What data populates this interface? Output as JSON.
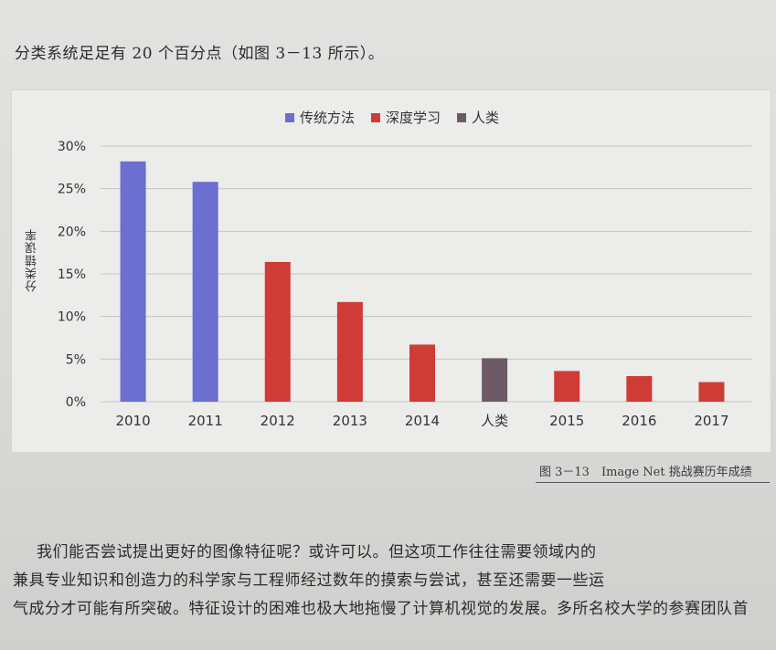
{
  "page": {
    "intro": "分类系统足足有 20 个百分点（如图 3－13 所示）。",
    "caption": "图 3－13　Image Net 挑战赛历年成绩",
    "body_lines": [
      "我们能否尝试提出更好的图像特征呢？或许可以。但这项工作往往需要领域内的",
      "兼具专业知识和创造力的科学家与工程师经过数年的摸索与尝试，甚至还需要一些运",
      "气成分才可能有所突破。特征设计的困难也极大地拖慢了计算机视觉的发展。多所名校大学的参赛团队首"
    ]
  },
  "colors": {
    "traditional": "#6b6fcf",
    "deep_learning": "#cf3b35",
    "human": "#6e5a66",
    "grid": "#c4c4c2"
  },
  "chart_data": {
    "type": "bar",
    "title": "",
    "xlabel": "",
    "ylabel": "分类错误率",
    "ylim": [
      0,
      30
    ],
    "yticks": [
      "0%",
      "5%",
      "10%",
      "15%",
      "20%",
      "25%",
      "30%"
    ],
    "grid": true,
    "legend_position": "top-center",
    "legend": [
      {
        "name": "传统方法",
        "color_key": "traditional"
      },
      {
        "name": "深度学习",
        "color_key": "deep_learning"
      },
      {
        "name": "人类",
        "color_key": "human"
      }
    ],
    "categories": [
      "2010",
      "2011",
      "2012",
      "2013",
      "2014",
      "人类",
      "2015",
      "2016",
      "2017"
    ],
    "values": [
      28.2,
      25.8,
      16.4,
      11.7,
      6.7,
      5.1,
      3.6,
      3.0,
      2.3
    ],
    "groups": [
      "traditional",
      "traditional",
      "deep_learning",
      "deep_learning",
      "deep_learning",
      "human",
      "deep_learning",
      "deep_learning",
      "deep_learning"
    ]
  }
}
